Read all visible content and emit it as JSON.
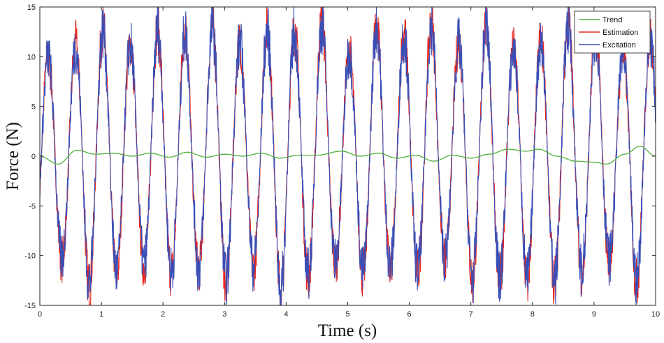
{
  "chart_data": {
    "type": "line",
    "xlabel": "Time (s)",
    "ylabel": "Force (N)",
    "xlim": [
      0,
      10
    ],
    "ylim": [
      -15,
      15
    ],
    "xticks": [
      0,
      1,
      2,
      3,
      4,
      5,
      6,
      7,
      8,
      9,
      10
    ],
    "yticks": [
      -15,
      -10,
      -5,
      0,
      5,
      10,
      15
    ],
    "grid": false,
    "legend_position": "top-right",
    "signal": {
      "sample_step": 0.005,
      "carrier_frequency_hz": 2.25,
      "peak_amplitude_range": [
        10,
        13.5
      ],
      "trough_amplitude_range": [
        -13.5,
        -10
      ]
    },
    "series": [
      {
        "name": "Trend",
        "color": "#4daf3a",
        "points": [
          [
            0,
            0
          ],
          [
            0.3,
            -0.8
          ],
          [
            0.6,
            0.6
          ],
          [
            0.9,
            0.2
          ],
          [
            1.2,
            0.3
          ],
          [
            1.5,
            0.0
          ],
          [
            1.8,
            0.3
          ],
          [
            2.1,
            -0.1
          ],
          [
            2.4,
            0.4
          ],
          [
            2.7,
            -0.1
          ],
          [
            3.0,
            0.2
          ],
          [
            3.3,
            0.0
          ],
          [
            3.6,
            0.3
          ],
          [
            3.9,
            -0.2
          ],
          [
            4.2,
            0.1
          ],
          [
            4.5,
            0.1
          ],
          [
            4.9,
            0.5
          ],
          [
            5.2,
            0.0
          ],
          [
            5.5,
            0.3
          ],
          [
            5.8,
            -0.2
          ],
          [
            6.1,
            0.1
          ],
          [
            6.4,
            -0.5
          ],
          [
            6.7,
            0.1
          ],
          [
            7.0,
            -0.2
          ],
          [
            7.3,
            0.2
          ],
          [
            7.6,
            0.7
          ],
          [
            7.9,
            0.5
          ],
          [
            8.1,
            0.7
          ],
          [
            8.4,
            0.0
          ],
          [
            8.7,
            -0.5
          ],
          [
            9.0,
            -0.6
          ],
          [
            9.2,
            -0.8
          ],
          [
            9.5,
            0.2
          ],
          [
            9.75,
            1.0
          ],
          [
            10,
            0
          ]
        ]
      },
      {
        "name": "Estimation",
        "color": "#e8251c"
      },
      {
        "name": "Excitation",
        "color": "#3a4fb6"
      }
    ]
  }
}
